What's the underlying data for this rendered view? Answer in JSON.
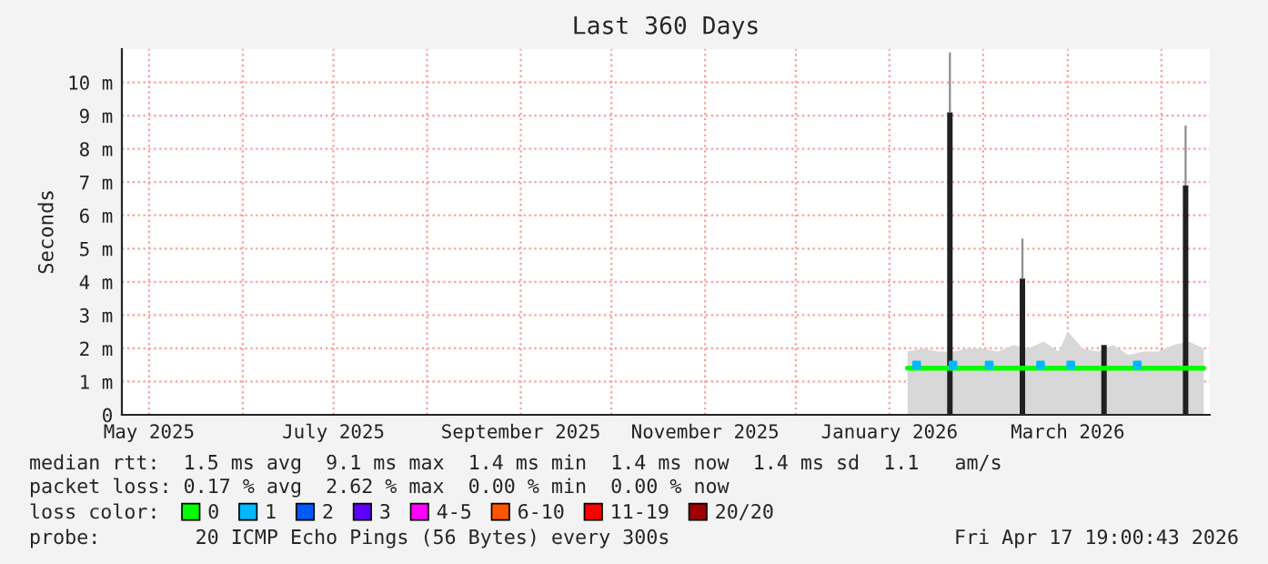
{
  "chart_data": {
    "type": "line",
    "title": "Last 360 Days",
    "ylabel": "Seconds",
    "xlim": [
      "2025-04-22",
      "2026-04-17"
    ],
    "xticks": [
      {
        "value": "2025-05-01",
        "label": "May 2025"
      },
      {
        "value": "2025-06-01",
        "label": null
      },
      {
        "value": "2025-07-01",
        "label": "July 2025"
      },
      {
        "value": "2025-08-01",
        "label": null
      },
      {
        "value": "2025-09-01",
        "label": "September 2025"
      },
      {
        "value": "2025-10-01",
        "label": null
      },
      {
        "value": "2025-11-01",
        "label": "November 2025"
      },
      {
        "value": "2025-12-01",
        "label": null
      },
      {
        "value": "2026-01-01",
        "label": "January 2026"
      },
      {
        "value": "2026-02-01",
        "label": null
      },
      {
        "value": "2026-03-01",
        "label": "March 2026"
      },
      {
        "value": "2026-04-01",
        "label": null
      }
    ],
    "ylim": [
      0,
      11
    ],
    "yticks": [
      0,
      {
        "value": 1,
        "label": "1 m"
      },
      {
        "value": 2,
        "label": "2 m"
      },
      {
        "value": 3,
        "label": "3 m"
      },
      {
        "value": 4,
        "label": "4 m"
      },
      {
        "value": 5,
        "label": "5 m"
      },
      {
        "value": 6,
        "label": "6 m"
      },
      {
        "value": 7,
        "label": "7 m"
      },
      {
        "value": 8,
        "label": "8 m"
      },
      {
        "value": 9,
        "label": "9 m"
      },
      {
        "value": 10,
        "label": "10 m"
      }
    ],
    "grid": true,
    "legend": "bottom",
    "legend_title": "loss color:",
    "series": [
      {
        "type": "area",
        "color": "#d8d8d8",
        "x": [
          "2026-01-07",
          "2026-01-12",
          "2026-01-17",
          "2026-01-22",
          "2026-01-27",
          "2026-02-01",
          "2026-02-06",
          "2026-02-11",
          "2026-02-16",
          "2026-02-21",
          "2026-02-26",
          "2026-03-01",
          "2026-03-06",
          "2026-03-11",
          "2026-03-16",
          "2026-03-21",
          "2026-03-26",
          "2026-03-31",
          "2026-04-05",
          "2026-04-10",
          "2026-04-15"
        ],
        "values": [
          1.9,
          2.0,
          1.9,
          1.9,
          2.0,
          2.0,
          1.9,
          2.1,
          2.0,
          2.2,
          1.9,
          2.5,
          2.0,
          1.9,
          2.1,
          1.8,
          1.9,
          1.9,
          2.1,
          2.2,
          2.0
        ]
      },
      {
        "type": "bar",
        "color": "#202020",
        "x": [
          "2026-01-21",
          "2026-02-14",
          "2026-03-13",
          "2026-04-09"
        ],
        "values": [
          9.1,
          4.1,
          2.1,
          6.9
        ]
      },
      {
        "type": "bar",
        "color": "#909090",
        "x": [
          "2026-01-21",
          "2026-02-14",
          "2026-04-09"
        ],
        "base": [
          9.1,
          4.1,
          6.9
        ],
        "values": [
          1.8,
          1.2,
          1.8
        ]
      },
      {
        "name": "0",
        "color": "#00ff00",
        "x": [
          "2026-01-07",
          "2026-01-12",
          "2026-01-17",
          "2026-01-22",
          "2026-01-27",
          "2026-02-01",
          "2026-02-06",
          "2026-02-11",
          "2026-02-16",
          "2026-02-21",
          "2026-02-26",
          "2026-03-01",
          "2026-03-06",
          "2026-03-11",
          "2026-03-16",
          "2026-03-21",
          "2026-03-26",
          "2026-03-31",
          "2026-04-05",
          "2026-04-10",
          "2026-04-15"
        ],
        "values": [
          1.4,
          1.4,
          1.4,
          1.4,
          1.4,
          1.4,
          1.4,
          1.4,
          1.4,
          1.4,
          1.4,
          1.4,
          1.4,
          1.4,
          1.4,
          1.4,
          1.4,
          1.4,
          1.4,
          1.4,
          1.4
        ]
      },
      {
        "name": "1",
        "type": "scatter",
        "color": "#00b8ff",
        "x": [
          "2026-01-10",
          "2026-01-22",
          "2026-02-03",
          "2026-02-20",
          "2026-03-02",
          "2026-03-24"
        ],
        "values": [
          1.5,
          1.5,
          1.5,
          1.5,
          1.5,
          1.5
        ]
      },
      {
        "name": "2",
        "color": "#0059ff"
      },
      {
        "name": "3",
        "color": "#5e00ff"
      },
      {
        "name": "4-5",
        "color": "#ff00ff"
      },
      {
        "name": "6-10",
        "color": "#ff5500"
      },
      {
        "name": "11-19",
        "color": "#ff0000"
      },
      {
        "name": "20/20",
        "color": "#a10000"
      }
    ],
    "annotations": [
      "median rtt:  1.5 ms avg  9.1 ms max  1.4 ms min  1.4 ms now  1.4 ms sd  1.1   am/s",
      "packet loss: 0.17 % avg  2.62 % max  0.00 % min  0.00 % now",
      "probe:        20 ICMP Echo Pings (56 Bytes) every 300s",
      "Fri Apr 17 19:00:43 2026"
    ]
  }
}
